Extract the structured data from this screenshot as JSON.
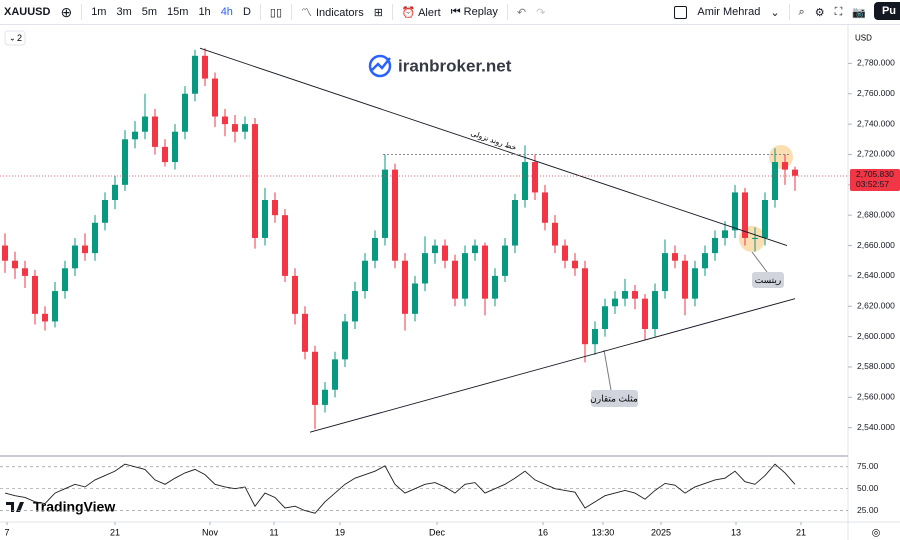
{
  "toolbar": {
    "symbol": "XAUUSD",
    "intervals": [
      "1m",
      "3m",
      "5m",
      "15m",
      "1h",
      "4h",
      "D"
    ],
    "indicators": "Indicators",
    "alert": "Alert",
    "replay": "Replay",
    "user": "Amir Mehrad",
    "publish": "Pu"
  },
  "pane_header": {
    "count": "2",
    "currency": "USD"
  },
  "watermark": "iranbroker.net",
  "logo": "TradingView",
  "chart_data": {
    "type": "candlestick",
    "up_color": "#089981",
    "down_color": "#f23645",
    "ohlc": [
      [
        2660,
        2668,
        2642,
        2650
      ],
      [
        2650,
        2656,
        2638,
        2645
      ],
      [
        2645,
        2650,
        2632,
        2640
      ],
      [
        2640,
        2644,
        2608,
        2615
      ],
      [
        2615,
        2620,
        2604,
        2610
      ],
      [
        2610,
        2636,
        2606,
        2630
      ],
      [
        2630,
        2650,
        2625,
        2645
      ],
      [
        2645,
        2665,
        2640,
        2660
      ],
      [
        2660,
        2668,
        2650,
        2655
      ],
      [
        2655,
        2680,
        2650,
        2675
      ],
      [
        2675,
        2695,
        2670,
        2690
      ],
      [
        2690,
        2706,
        2684,
        2700
      ],
      [
        2700,
        2736,
        2696,
        2730
      ],
      [
        2730,
        2742,
        2724,
        2735
      ],
      [
        2735,
        2760,
        2730,
        2745
      ],
      [
        2745,
        2750,
        2720,
        2725
      ],
      [
        2725,
        2730,
        2712,
        2715
      ],
      [
        2715,
        2740,
        2710,
        2735
      ],
      [
        2735,
        2765,
        2730,
        2760
      ],
      [
        2760,
        2789,
        2755,
        2785
      ],
      [
        2785,
        2790,
        2765,
        2770
      ],
      [
        2770,
        2774,
        2738,
        2745
      ],
      [
        2745,
        2750,
        2732,
        2740
      ],
      [
        2740,
        2746,
        2728,
        2735
      ],
      [
        2735,
        2745,
        2730,
        2740
      ],
      [
        2740,
        2744,
        2658,
        2665
      ],
      [
        2665,
        2698,
        2660,
        2690
      ],
      [
        2690,
        2695,
        2675,
        2680
      ],
      [
        2680,
        2684,
        2636,
        2640
      ],
      [
        2640,
        2645,
        2608,
        2615
      ],
      [
        2615,
        2620,
        2585,
        2590
      ],
      [
        2590,
        2594,
        2539,
        2555
      ],
      [
        2555,
        2570,
        2550,
        2565
      ],
      [
        2565,
        2590,
        2560,
        2585
      ],
      [
        2585,
        2615,
        2580,
        2610
      ],
      [
        2610,
        2636,
        2605,
        2630
      ],
      [
        2630,
        2655,
        2625,
        2650
      ],
      [
        2650,
        2670,
        2645,
        2665
      ],
      [
        2665,
        2720,
        2660,
        2710
      ],
      [
        2710,
        2714,
        2645,
        2650
      ],
      [
        2650,
        2655,
        2604,
        2615
      ],
      [
        2615,
        2640,
        2610,
        2635
      ],
      [
        2635,
        2666,
        2630,
        2655
      ],
      [
        2655,
        2664,
        2648,
        2660
      ],
      [
        2660,
        2664,
        2645,
        2650
      ],
      [
        2650,
        2654,
        2620,
        2625
      ],
      [
        2625,
        2660,
        2620,
        2655
      ],
      [
        2655,
        2664,
        2650,
        2660
      ],
      [
        2660,
        2662,
        2614,
        2625
      ],
      [
        2625,
        2645,
        2620,
        2640
      ],
      [
        2640,
        2665,
        2636,
        2660
      ],
      [
        2660,
        2694,
        2655,
        2690
      ],
      [
        2690,
        2726,
        2685,
        2715
      ],
      [
        2715,
        2720,
        2690,
        2695
      ],
      [
        2695,
        2700,
        2670,
        2675
      ],
      [
        2675,
        2680,
        2655,
        2660
      ],
      [
        2660,
        2664,
        2645,
        2650
      ],
      [
        2650,
        2655,
        2640,
        2645
      ],
      [
        2645,
        2650,
        2583,
        2595
      ],
      [
        2595,
        2610,
        2588,
        2605
      ],
      [
        2605,
        2625,
        2600,
        2620
      ],
      [
        2620,
        2630,
        2615,
        2625
      ],
      [
        2625,
        2638,
        2620,
        2630
      ],
      [
        2630,
        2634,
        2618,
        2625
      ],
      [
        2625,
        2628,
        2598,
        2605
      ],
      [
        2605,
        2635,
        2600,
        2630
      ],
      [
        2630,
        2664,
        2625,
        2655
      ],
      [
        2655,
        2660,
        2645,
        2650
      ],
      [
        2650,
        2654,
        2614,
        2625
      ],
      [
        2625,
        2650,
        2620,
        2645
      ],
      [
        2645,
        2660,
        2640,
        2655
      ],
      [
        2655,
        2670,
        2650,
        2665
      ],
      [
        2665,
        2676,
        2660,
        2670
      ],
      [
        2670,
        2700,
        2665,
        2695
      ],
      [
        2695,
        2698,
        2660,
        2665
      ],
      [
        2665,
        2672,
        2656,
        2665
      ],
      [
        2665,
        2695,
        2660,
        2690
      ],
      [
        2690,
        2724,
        2685,
        2715
      ],
      [
        2715,
        2720,
        2700,
        2710
      ],
      [
        2710,
        2712,
        2696,
        2706
      ]
    ],
    "xlim": [
      -0.5,
      84.3
    ],
    "xticks": [
      {
        "value": 0.2,
        "label": "7"
      },
      {
        "value": 11,
        "label": "21"
      },
      {
        "value": 20.5,
        "label": "Nov"
      },
      {
        "value": 26.9,
        "label": "11"
      },
      {
        "value": 33.5,
        "label": "19"
      },
      {
        "value": 43.2,
        "label": "Dec"
      },
      {
        "value": 53.8,
        "label": "16"
      },
      {
        "value": 59.8,
        "label": "13:30"
      },
      {
        "value": 65.6,
        "label": "2025"
      },
      {
        "value": 73.1,
        "label": "13"
      },
      {
        "value": 79.6,
        "label": "21"
      }
    ],
    "ylim": [
      2522,
      2802
    ],
    "yticks": [
      {
        "value": 2540,
        "label": "2,540.000"
      },
      {
        "value": 2560,
        "label": "2,560.000"
      },
      {
        "value": 2580,
        "label": "2,580.000"
      },
      {
        "value": 2600,
        "label": "2,600.000"
      },
      {
        "value": 2620,
        "label": "2,620.000"
      },
      {
        "value": 2640,
        "label": "2,640.000"
      },
      {
        "value": 2660,
        "label": "2,660.000"
      },
      {
        "value": 2680,
        "label": "2,680.000"
      },
      {
        "value": 2700,
        "label": "2,700.000"
      },
      {
        "value": 2720,
        "label": "2,720.000"
      },
      {
        "value": 2740,
        "label": "2,740.000"
      },
      {
        "value": 2760,
        "label": "2,760.000"
      },
      {
        "value": 2780,
        "label": "2,780.000"
      }
    ],
    "last_price": {
      "value": 2705.83,
      "label": "2,705.830"
    },
    "countdown": "03:52:57",
    "trendlines": [
      {
        "label": "خط روند نزولی",
        "from": [
          19.5,
          2790
        ],
        "to": [
          78.2,
          2660
        ]
      },
      {
        "from": [
          30.5,
          2537
        ],
        "to": [
          79,
          2625
        ]
      },
      {
        "from": [
          37.8,
          2720
        ],
        "to": [
          78.5,
          2720
        ],
        "dashed": true
      }
    ],
    "annotations": [
      "ریتست",
      "مثلث متقارن"
    ],
    "indicator": {
      "type": "line",
      "color": "#1e1e1e",
      "ylim": [
        20,
        85
      ],
      "yticks": [
        {
          "value": 75,
          "label": "75.00"
        },
        {
          "value": 50,
          "label": "50.00"
        },
        {
          "value": 25,
          "label": "25.00"
        }
      ],
      "values": [
        45,
        42,
        40,
        35,
        33,
        45,
        50,
        55,
        52,
        60,
        65,
        70,
        78,
        75,
        72,
        60,
        55,
        62,
        68,
        72,
        66,
        55,
        52,
        50,
        52,
        30,
        45,
        40,
        28,
        30,
        25,
        22,
        35,
        45,
        55,
        62,
        66,
        70,
        76,
        55,
        45,
        50,
        55,
        57,
        52,
        45,
        55,
        57,
        45,
        50,
        55,
        62,
        70,
        60,
        55,
        50,
        48,
        46,
        28,
        35,
        42,
        45,
        48,
        45,
        38,
        48,
        56,
        54,
        45,
        52,
        56,
        60,
        62,
        70,
        58,
        55,
        65,
        78,
        68,
        55
      ]
    }
  }
}
